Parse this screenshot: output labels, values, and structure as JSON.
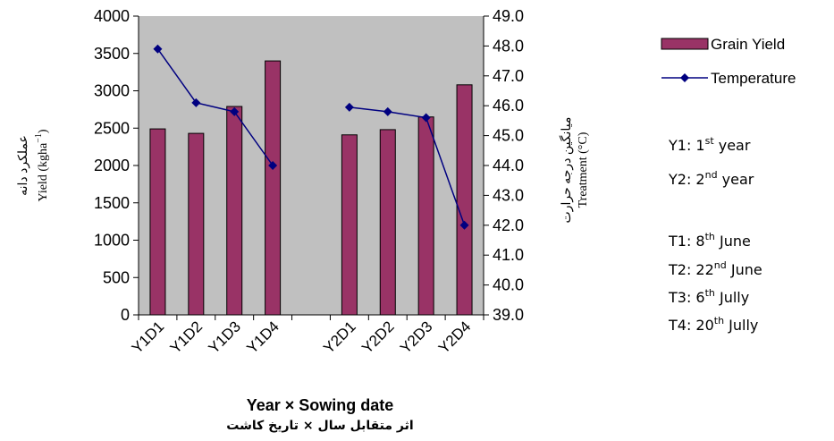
{
  "chart_data": {
    "type": "bar",
    "categories": [
      "Y1D1",
      "Y1D2",
      "Y1D3",
      "Y1D4",
      "",
      "Y2D1",
      "Y2D2",
      "Y2D3",
      "Y2D4"
    ],
    "series": [
      {
        "name": "Grain Yield",
        "kind": "bar",
        "axis": "left",
        "color": "#993366",
        "values": [
          2490,
          2430,
          2790,
          3400,
          null,
          2410,
          2480,
          2650,
          3080
        ]
      },
      {
        "name": "Temperature",
        "kind": "line",
        "axis": "right",
        "color": "#000080",
        "values": [
          47.9,
          46.1,
          45.8,
          44.0,
          null,
          45.95,
          45.8,
          45.6,
          42.0
        ]
      }
    ],
    "y_left": {
      "min": 0,
      "max": 4000,
      "step": 500,
      "ticks": [
        "0",
        "500",
        "1000",
        "1500",
        "2000",
        "2500",
        "3000",
        "3500",
        "4000"
      ]
    },
    "y_right": {
      "min": 39.0,
      "max": 49.0,
      "step": 1.0,
      "ticks": [
        "39.0",
        "40.0",
        "41.0",
        "42.0",
        "43.0",
        "44.0",
        "45.0",
        "46.0",
        "47.0",
        "48.0",
        "49.0"
      ]
    },
    "ylabel_left_fa": "عملکرد دانه",
    "ylabel_left_prefix": "Yield (kgha",
    "ylabel_left_sup": "−1",
    "ylabel_left_suffix": ")",
    "ylabel_right_fa": "میانگین درجه حرارت",
    "ylabel_right": "Treatment (°C)",
    "xlabel": "Year × Sowing date",
    "xlabel_fa": "اثر متقابل سال × تاریخ کاشت",
    "plot_background": "#c0c0c0",
    "grid": false,
    "legend_position": "right"
  },
  "notes": [
    {
      "base": "Y1: 1",
      "sup": "st",
      "rest": " year"
    },
    {
      "base": "Y2: 2",
      "sup": "nd",
      "rest": " year"
    },
    {
      "base": "T1: 8",
      "sup": "th",
      "rest": " June"
    },
    {
      "base": "T2: 22",
      "sup": "nd",
      "rest": " June"
    },
    {
      "base": "T3: 6",
      "sup": "th",
      "rest": " Jully"
    },
    {
      "base": "T4: 20",
      "sup": "th",
      "rest": " Jully"
    }
  ]
}
